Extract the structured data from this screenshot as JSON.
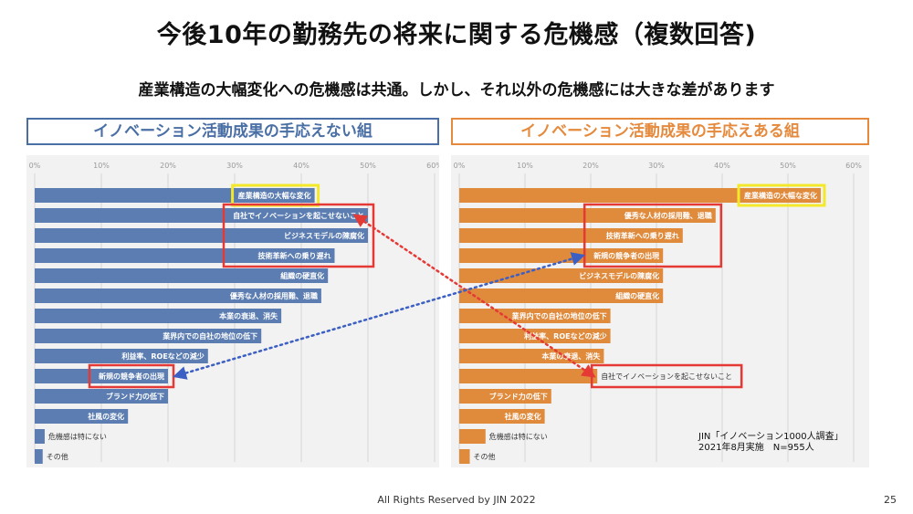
{
  "title": "今後10年の勤務先の将来に関する危機感（複数回答)",
  "subtitle": "産業構造の大幅変化への危機感は共通。しかし、それ以外の危機感には大きな差があります",
  "chart_data": [
    {
      "type": "bar",
      "orientation": "horizontal",
      "title": "イノベーション活動成果の手応えない組",
      "xlim": [
        0,
        60
      ],
      "ticks": [
        "0%",
        "10%",
        "20%",
        "30%",
        "40%",
        "50%",
        "60%"
      ],
      "color": "#5b7db1",
      "categories": [
        "産業構造の大幅な変化",
        "自社でイノベーションを起こせないこと",
        "ビジネスモデルの陳腐化",
        "技術革新への乗り遅れ",
        "組織の硬直化",
        "優秀な人材の採用難、退職",
        "本業の衰退、消失",
        "業界内での自社の地位の低下",
        "利益率、ROEなどの減少",
        "新規の競争者の出現",
        "ブランド力の低下",
        "社風の変化",
        "危機感は特にない",
        "その他"
      ],
      "values": [
        42,
        50,
        50,
        45,
        44,
        43,
        37,
        34,
        26,
        20,
        20,
        14,
        1.5,
        1.2
      ],
      "highlight_yellow": [
        0
      ],
      "highlight_red_groups": [
        [
          1,
          3
        ],
        [
          9,
          9
        ]
      ]
    },
    {
      "type": "bar",
      "orientation": "horizontal",
      "title": "イノベーション活動成果の手応えある組",
      "xlim": [
        0,
        60
      ],
      "ticks": [
        "0%",
        "10%",
        "20%",
        "30%",
        "40%",
        "50%",
        "60%"
      ],
      "color": "#e08a3c",
      "categories": [
        "産業構造の大幅な変化",
        "優秀な人材の採用難、退職",
        "技術革新への乗り遅れ",
        "新規の競争者の出現",
        "ビジネスモデルの陳腐化",
        "組織の硬直化",
        "業界内での自社の地位の低下",
        "利益率、ROEなどの減少",
        "本業の衰退、消失",
        "自社でイノベーションを起こせないこと",
        "ブランド力の低下",
        "社風の変化",
        "危機感は特にない",
        "その他"
      ],
      "values": [
        55,
        39,
        34,
        31,
        31,
        31,
        23,
        23,
        22,
        21,
        14,
        13,
        4,
        1.6
      ],
      "highlight_yellow": [
        0
      ],
      "highlight_red_groups": [
        [
          1,
          3
        ],
        [
          9,
          9
        ]
      ]
    }
  ],
  "source_lines": [
    "JIN「イノベーション1000人調査」",
    "2021年8月実施　N=955人"
  ],
  "footer": "All Rights Reserved by JIN 2022",
  "page_number": "25"
}
